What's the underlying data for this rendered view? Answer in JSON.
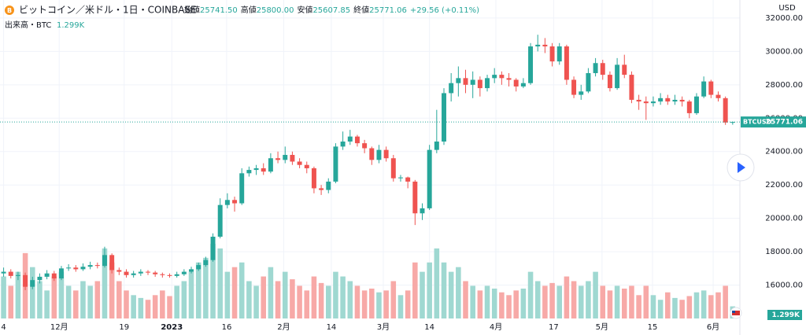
{
  "chart_data": {
    "type": "candlestick",
    "title": "ビットコイン／米ドル・1日・COINBASE",
    "ohlc_header": [
      {
        "label": "始値",
        "value": "25741.50"
      },
      {
        "label": "高値",
        "value": "25800.00"
      },
      {
        "label": "安値",
        "value": "25607.85"
      },
      {
        "label": "終値",
        "value": "25771.06"
      }
    ],
    "change": "+29.56 (+0.11%)",
    "volume_legend": {
      "label": "出来高・BTC",
      "value": "1.299K"
    },
    "y_axis_label": "USD",
    "last_price": {
      "symbol": "BTCUSD",
      "value": 25771.06
    },
    "up_color": "#26a69a",
    "down_color": "#ef5350",
    "volume_up_color": "#9fd8d1",
    "volume_down_color": "#f7a9a7",
    "grid": true,
    "xlim": [
      -0.5,
      102
    ],
    "xticks": [
      {
        "value": 0,
        "label": "4"
      },
      {
        "value": 7.7,
        "label": "12月"
      },
      {
        "value": 16.7,
        "label": "19"
      },
      {
        "value": 23.3,
        "label": "2023"
      },
      {
        "value": 30.9,
        "label": "16"
      },
      {
        "value": 38.8,
        "label": "2月"
      },
      {
        "value": 45.4,
        "label": "14"
      },
      {
        "value": 52.6,
        "label": "3月"
      },
      {
        "value": 59.0,
        "label": "14"
      },
      {
        "value": 68.2,
        "label": "4月"
      },
      {
        "value": 76.2,
        "label": "17"
      },
      {
        "value": 82.9,
        "label": "5月"
      },
      {
        "value": 89.9,
        "label": "15"
      },
      {
        "value": 98.3,
        "label": "6月"
      }
    ],
    "ylim": [
      14000,
      33080
    ],
    "yticks": [
      {
        "value": 16000,
        "label": "16000.00"
      },
      {
        "value": 18000,
        "label": "18000.00"
      },
      {
        "value": 20000,
        "label": "20000.00"
      },
      {
        "value": 22000,
        "label": "22000.00"
      },
      {
        "value": 24000,
        "label": "24000.00"
      },
      {
        "value": 26000,
        "label": "26000.00"
      },
      {
        "value": 28000,
        "label": "28000.00"
      },
      {
        "value": 30000,
        "label": "30000.00"
      },
      {
        "value": 32000,
        "label": "32000.00"
      }
    ],
    "open": [
      16700,
      16800,
      16550,
      16600,
      15900,
      16300,
      16500,
      16700,
      16400,
      17000,
      17050,
      16950,
      17100,
      17200,
      17150,
      17800,
      16900,
      16800,
      16600,
      16700,
      16800,
      16750,
      16650,
      16600,
      16550,
      16650,
      16800,
      16950,
      17200,
      17500,
      18900,
      20800,
      21100,
      20900,
      22700,
      22900,
      23000,
      22800,
      23600,
      23500,
      23800,
      23400,
      23200,
      23000,
      21800,
      21700,
      22200,
      24300,
      24600,
      24900,
      24500,
      24200,
      23500,
      24100,
      23600,
      22400,
      22450,
      22200,
      20300,
      20600,
      24100,
      24600,
      27500,
      28100,
      28400,
      28000,
      28300,
      27800,
      28400,
      28600,
      28400,
      28300,
      27900,
      28100,
      30300,
      30400,
      30300,
      29400,
      30300,
      28300,
      27400,
      27600,
      28700,
      29300,
      28600,
      27800,
      29200,
      28600,
      27100,
      27000,
      26900,
      27000,
      27200,
      27000,
      27100,
      27000,
      26300,
      27300,
      28200,
      27400,
      27200,
      25741.5
    ],
    "high": [
      17050,
      16950,
      16800,
      16750,
      16500,
      16700,
      16900,
      16850,
      17150,
      17250,
      17200,
      17300,
      17400,
      17350,
      18300,
      17900,
      17050,
      16950,
      16850,
      16950,
      16900,
      16850,
      16750,
      16700,
      16800,
      16950,
      17100,
      17350,
      17700,
      19100,
      21200,
      21500,
      21300,
      23000,
      23100,
      23200,
      23300,
      23900,
      24000,
      24300,
      24000,
      23600,
      23400,
      23100,
      22000,
      22400,
      24500,
      25200,
      25300,
      25000,
      24700,
      24300,
      24400,
      24300,
      23800,
      22600,
      22500,
      22300,
      20900,
      24400,
      26500,
      27800,
      28700,
      29100,
      28900,
      28800,
      28500,
      28600,
      29000,
      28800,
      28700,
      28400,
      28400,
      30500,
      31000,
      30800,
      30500,
      30500,
      30400,
      28500,
      28000,
      29000,
      29600,
      29500,
      28800,
      29600,
      29800,
      28800,
      27400,
      27300,
      27300,
      27500,
      27400,
      27400,
      27300,
      27100,
      27500,
      28500,
      28300,
      27600,
      27300,
      25800
    ],
    "low": [
      16500,
      16400,
      16300,
      15700,
      15750,
      16100,
      16350,
      16250,
      16300,
      16850,
      16800,
      16850,
      16950,
      17000,
      17050,
      16700,
      16600,
      16450,
      16450,
      16550,
      16600,
      16500,
      16450,
      16450,
      16450,
      16550,
      16700,
      16850,
      17100,
      17400,
      18800,
      20600,
      20400,
      20800,
      22500,
      22600,
      22600,
      22700,
      23300,
      23300,
      23200,
      23000,
      22700,
      21500,
      21400,
      21500,
      22100,
      24100,
      24400,
      24300,
      23900,
      23200,
      23300,
      23400,
      22200,
      22200,
      21800,
      19600,
      19900,
      20500,
      23900,
      24400,
      27000,
      27300,
      27500,
      27200,
      27300,
      27600,
      28100,
      28000,
      27900,
      27600,
      27800,
      28000,
      30000,
      29900,
      29100,
      29200,
      28000,
      27200,
      27100,
      27500,
      28500,
      28300,
      27600,
      27700,
      28400,
      26900,
      26500,
      25900,
      26700,
      26800,
      26800,
      26800,
      26700,
      26000,
      26200,
      27200,
      27200,
      27000,
      25600,
      25607.85
    ],
    "close": [
      16800,
      16550,
      16600,
      15900,
      16300,
      16500,
      16700,
      16400,
      17000,
      17050,
      16950,
      17100,
      17200,
      17150,
      17800,
      16900,
      16800,
      16600,
      16700,
      16800,
      16750,
      16650,
      16600,
      16550,
      16650,
      16800,
      16950,
      17200,
      17500,
      18900,
      20800,
      21100,
      20900,
      22700,
      22900,
      23000,
      22800,
      23600,
      23500,
      23800,
      23400,
      23200,
      23000,
      21800,
      21700,
      22200,
      24300,
      24600,
      24900,
      24500,
      24200,
      23500,
      24100,
      23600,
      22400,
      22450,
      22200,
      20300,
      20600,
      24100,
      24600,
      27500,
      28100,
      28400,
      28000,
      28300,
      27800,
      28400,
      28600,
      28400,
      28300,
      27900,
      28100,
      30300,
      30400,
      30300,
      29400,
      30300,
      28300,
      27400,
      27600,
      28700,
      29300,
      28600,
      27800,
      29200,
      28600,
      27100,
      27000,
      26900,
      27000,
      27200,
      27000,
      27100,
      27000,
      26300,
      27300,
      28200,
      27400,
      27200,
      25740,
      25771.06
    ],
    "volume": [
      4.5,
      3.5,
      5,
      7,
      5.5,
      4,
      3,
      4.5,
      5,
      3.5,
      3,
      4,
      3.5,
      4,
      7.5,
      6,
      4,
      3,
      2.5,
      2.2,
      2,
      2.5,
      3,
      2.4,
      3.5,
      4,
      5,
      6,
      6.5,
      8,
      7.5,
      5,
      5.5,
      6,
      4,
      3.5,
      4.5,
      5.5,
      4,
      5,
      4.2,
      3.5,
      3,
      4.5,
      3.8,
      3.5,
      5,
      4.5,
      4,
      3.5,
      3,
      3.2,
      2.8,
      3,
      4,
      2.5,
      3,
      6,
      5,
      6,
      7.5,
      6,
      5,
      5.5,
      4,
      3.5,
      3,
      3.5,
      3.2,
      2.8,
      2.5,
      3,
      3.2,
      5,
      4,
      3.5,
      3.8,
      3.5,
      4.5,
      4,
      3.5,
      4,
      5,
      3.5,
      3,
      3.5,
      3.2,
      3.5,
      2.5,
      3.5,
      2.5,
      2,
      2.8,
      2.2,
      2,
      2.4,
      2.8,
      3,
      2.5,
      2.8,
      3.5,
      1.299
    ]
  }
}
